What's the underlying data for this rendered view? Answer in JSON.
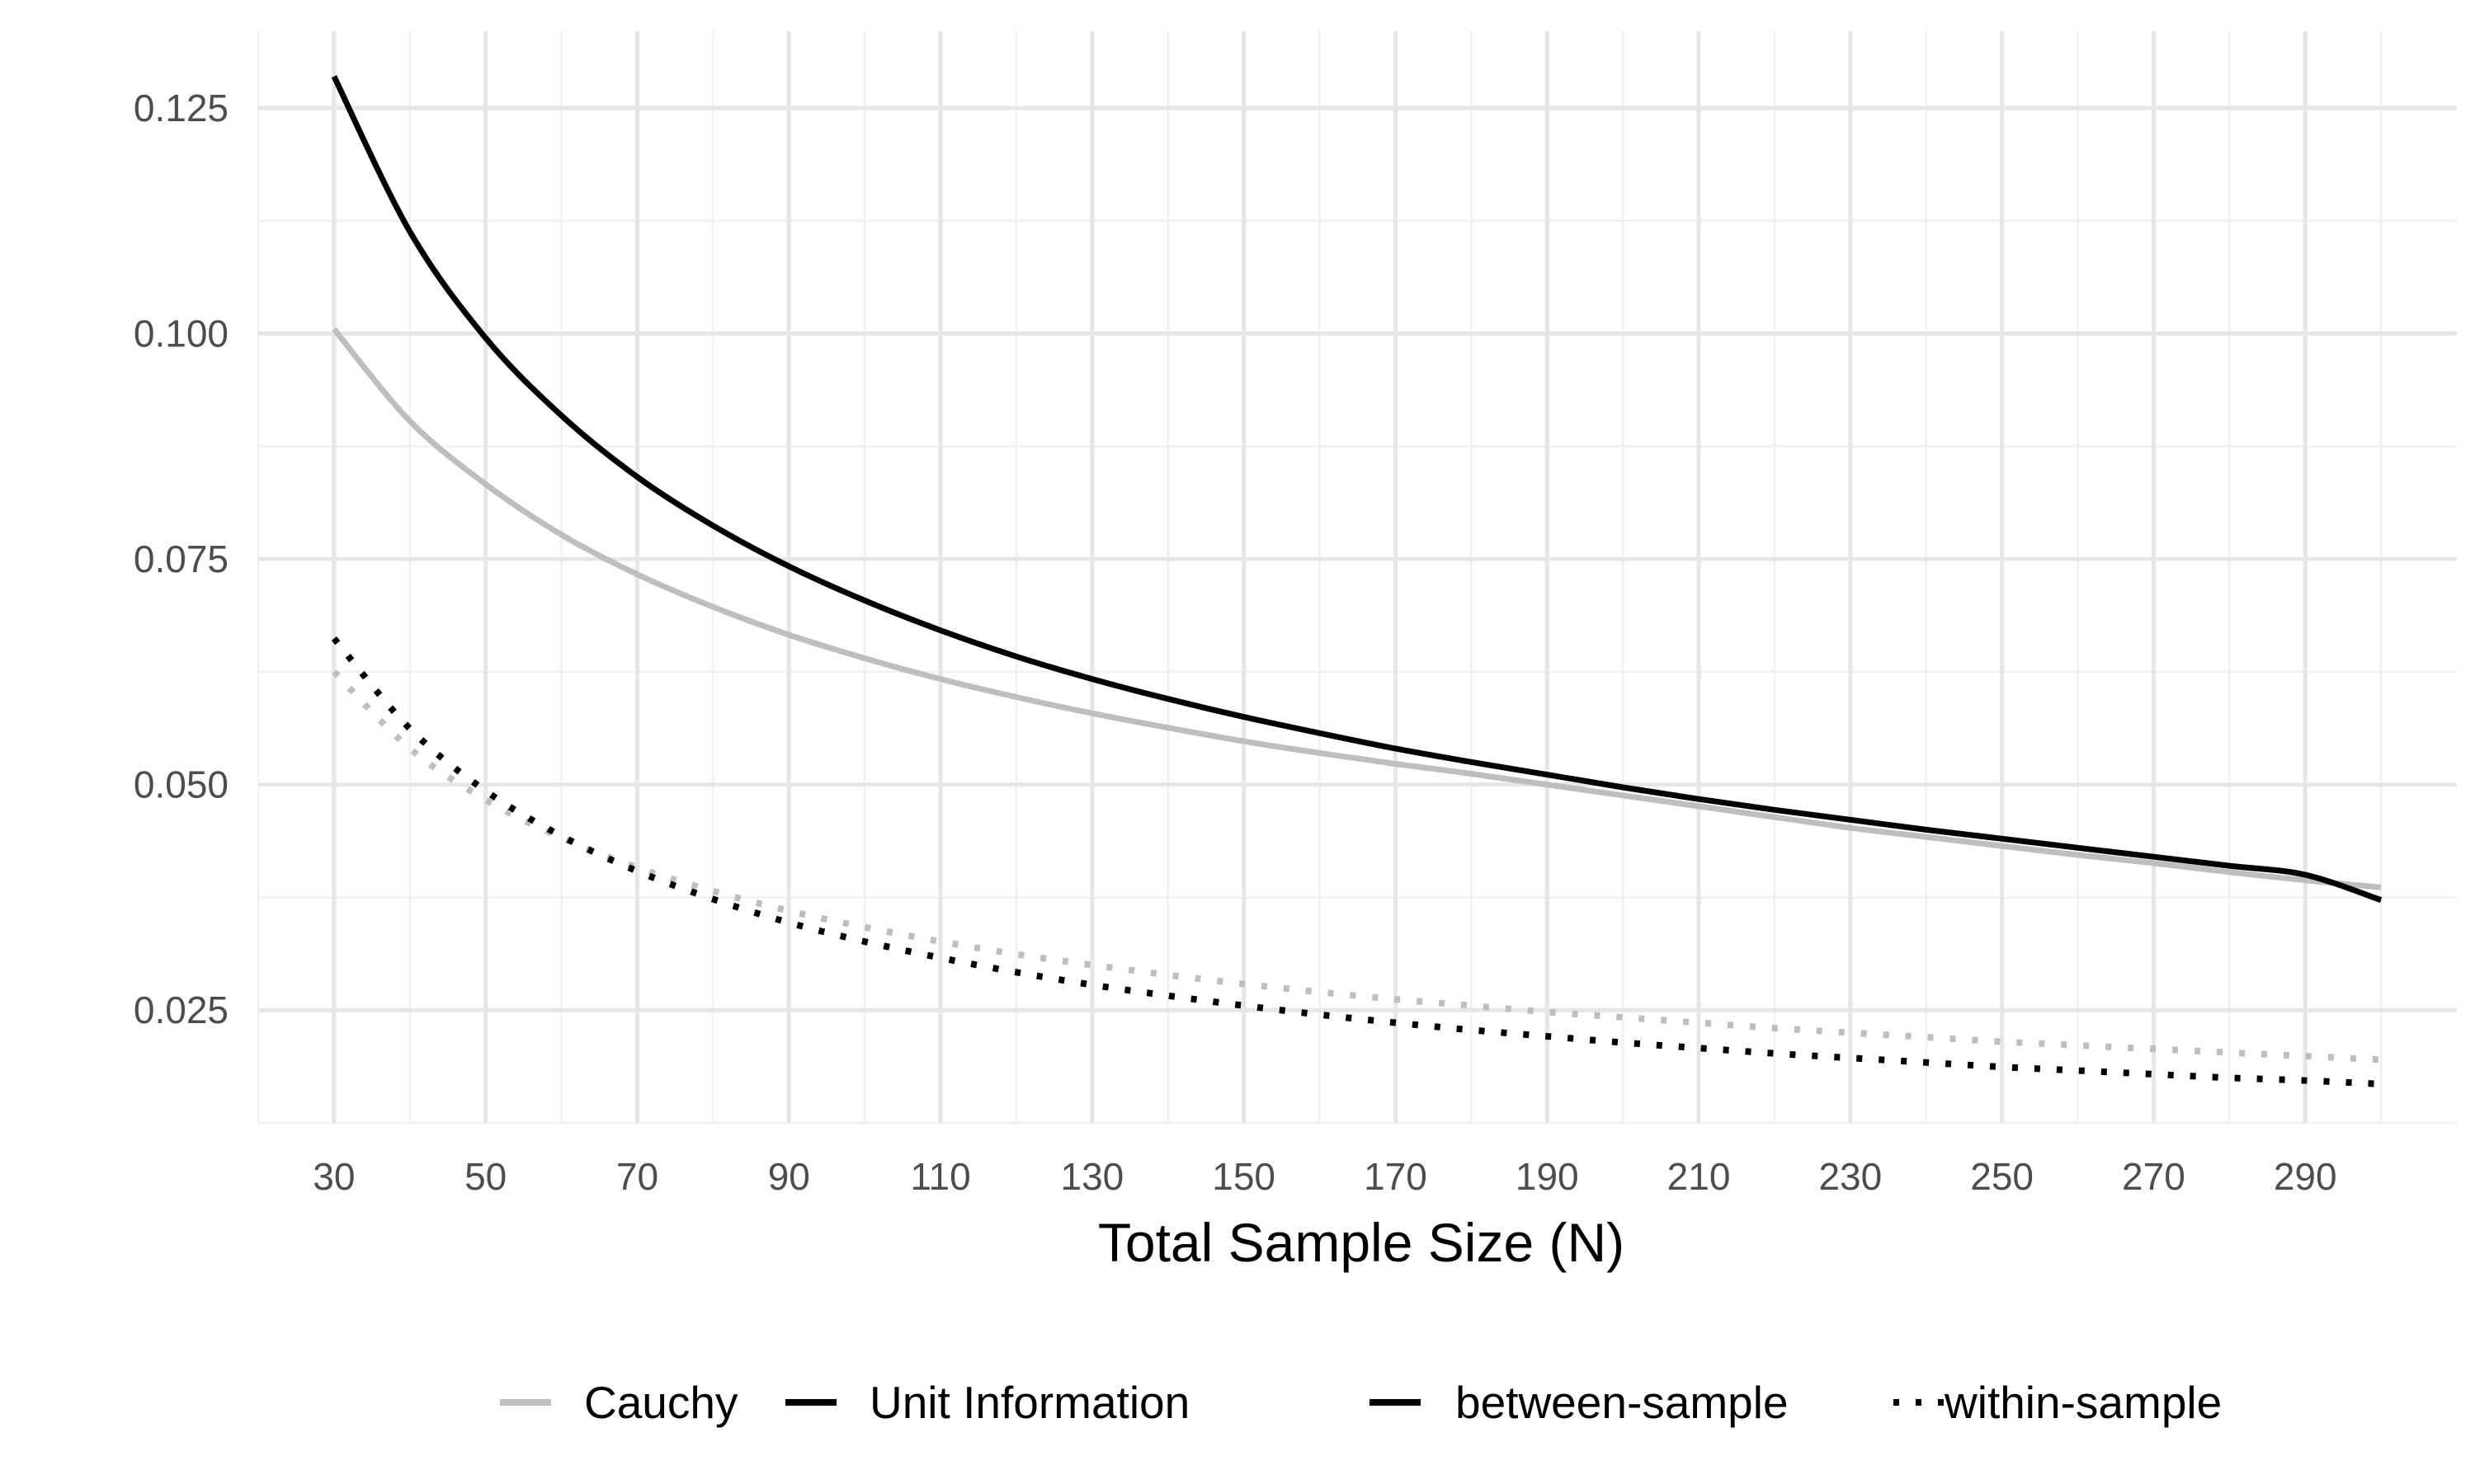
{
  "chart_data": {
    "type": "line",
    "title": "",
    "xlabel": "Total Sample Size (N)",
    "ylabel": "",
    "xlim": [
      20,
      310
    ],
    "ylim": [
      0.0125,
      0.1335
    ],
    "x_ticks": [
      30,
      50,
      70,
      90,
      110,
      130,
      150,
      170,
      190,
      210,
      230,
      250,
      270,
      290
    ],
    "y_ticks": [
      0.025,
      0.05,
      0.075,
      0.1,
      0.125
    ],
    "y_tick_labels": [
      "0.025",
      "0.050",
      "0.075",
      "0.100",
      "0.125"
    ],
    "grid": true,
    "legend_position": "bottom",
    "colors": {
      "Cauchy": "#bebebe",
      "Unit Information": "#000000"
    },
    "legend": {
      "color_title": "",
      "color_entries": [
        {
          "label": "Cauchy",
          "color": "#bebebe",
          "linetype": "solid"
        },
        {
          "label": "Unit Information",
          "color": "#000000",
          "linetype": "solid"
        }
      ],
      "linetype_title": "",
      "linetype_entries": [
        {
          "label": "between-sample",
          "color": "#000000",
          "linetype": "solid"
        },
        {
          "label": "within-sample",
          "color": "#000000",
          "linetype": "dotted"
        }
      ]
    },
    "x": [
      30,
      40,
      50,
      60,
      70,
      80,
      90,
      100,
      110,
      120,
      130,
      140,
      150,
      160,
      170,
      180,
      190,
      200,
      210,
      220,
      230,
      240,
      250,
      260,
      270,
      280,
      290,
      300
    ],
    "series": [
      {
        "prior": "Cauchy",
        "design": "between-sample",
        "color": "#bebebe",
        "linetype": "solid",
        "values": [
          0.1005,
          0.0903,
          0.0833,
          0.0777,
          0.0733,
          0.0697,
          0.0666,
          0.064,
          0.0617,
          0.0597,
          0.0579,
          0.0563,
          0.0548,
          0.0535,
          0.0523,
          0.0512,
          0.05,
          0.0488,
          0.0476,
          0.0464,
          0.0452,
          0.0442,
          0.0432,
          0.0422,
          0.0413,
          0.0403,
          0.0394,
          0.0386
        ]
      },
      {
        "prior": "Unit Information",
        "design": "between-sample",
        "color": "#000000",
        "linetype": "solid",
        "values": [
          0.1285,
          0.1113,
          0.0995,
          0.0909,
          0.0841,
          0.0787,
          0.0742,
          0.0704,
          0.0671,
          0.0642,
          0.0617,
          0.0595,
          0.0575,
          0.0557,
          0.054,
          0.0525,
          0.0511,
          0.0497,
          0.0484,
          0.0472,
          0.0461,
          0.045,
          0.044,
          0.043,
          0.042,
          0.041,
          0.04,
          0.0372
        ]
      },
      {
        "prior": "Cauchy",
        "design": "within-sample",
        "color": "#bebebe",
        "linetype": "dotted",
        "values": [
          0.0625,
          0.054,
          0.0483,
          0.0441,
          0.0408,
          0.0382,
          0.036,
          0.0342,
          0.0326,
          0.0312,
          0.03,
          0.0289,
          0.0279,
          0.027,
          0.0262,
          0.0255,
          0.0248,
          0.0242,
          0.0236,
          0.023,
          0.0225,
          0.022,
          0.0215,
          0.0211,
          0.0207,
          0.0203,
          0.0199,
          0.0195
        ]
      },
      {
        "prior": "Unit Information",
        "design": "within-sample",
        "color": "#000000",
        "linetype": "dotted",
        "values": [
          0.0662,
          0.0562,
          0.0493,
          0.0443,
          0.0404,
          0.0373,
          0.0347,
          0.0326,
          0.0308,
          0.0292,
          0.0278,
          0.0266,
          0.0255,
          0.0245,
          0.0236,
          0.0228,
          0.0221,
          0.0214,
          0.0208,
          0.0202,
          0.0197,
          0.0192,
          0.0187,
          0.0183,
          0.0179,
          0.0175,
          0.0172,
          0.0168
        ]
      }
    ]
  }
}
